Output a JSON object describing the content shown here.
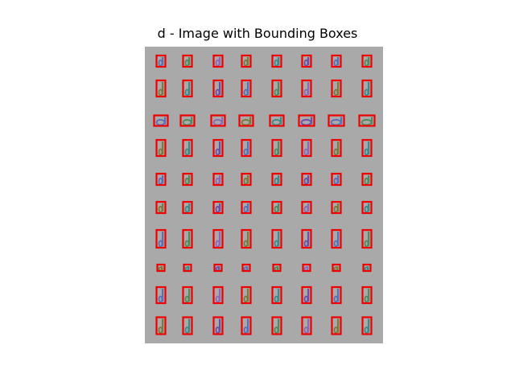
{
  "chart_data": {
    "type": "image",
    "title": "d - Image with Bounding Boxes",
    "image_background": "#a9a9a9",
    "box_color": "#ee0000",
    "grid": {
      "rows": 10,
      "cols": 8
    },
    "glyph_colors": [
      "#5a6fb8",
      "#4f8a5a",
      "#8a6ab8",
      "#7a7a3a",
      "#3a8a8a",
      "#6a4fa8"
    ],
    "box_kinds": [
      "short",
      "short",
      "short",
      "short",
      "short",
      "short",
      "short",
      "short",
      "tall",
      "tall",
      "tall",
      "tall",
      "tall",
      "tall",
      "tall",
      "tall",
      "wide",
      "wide",
      "wide",
      "wide",
      "wide",
      "wide",
      "wide",
      "wide",
      "tall",
      "tall",
      "tall",
      "tall",
      "tall",
      "tall",
      "tall",
      "tall",
      "short",
      "short",
      "short",
      "short",
      "short",
      "short",
      "short",
      "short",
      "short",
      "short",
      "short",
      "short",
      "short",
      "short",
      "short",
      "short",
      "tall",
      "tall",
      "tall",
      "tall",
      "tall",
      "tall",
      "tall",
      "tall",
      "tiny",
      "tiny",
      "tiny",
      "tiny",
      "tiny",
      "tiny",
      "tiny",
      "tiny",
      "tall",
      "tall",
      "tall",
      "tall",
      "tall",
      "tall",
      "tall",
      "tall",
      "tall",
      "tall",
      "tall",
      "tall",
      "tall",
      "tall",
      "tall",
      "tall"
    ]
  }
}
